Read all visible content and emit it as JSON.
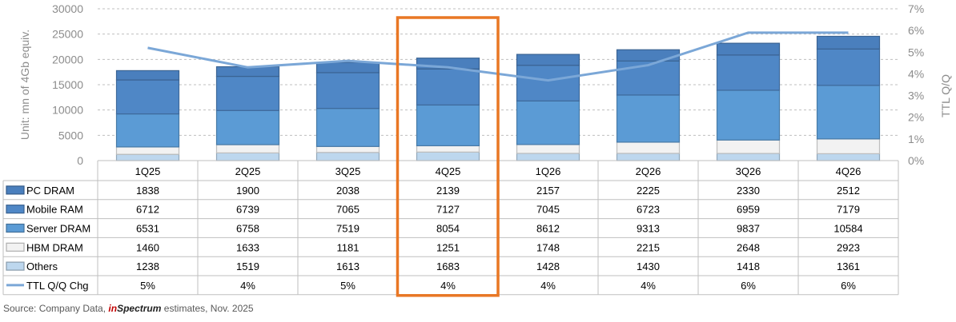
{
  "chart_data": {
    "type": "bar",
    "stacked": true,
    "categories": [
      "1Q25",
      "2Q25",
      "3Q25",
      "4Q25",
      "1Q26",
      "2Q26",
      "3Q26",
      "4Q26"
    ],
    "series": [
      {
        "name": "PC DRAM",
        "values": [
          1838,
          1900,
          2038,
          2139,
          2157,
          2225,
          2330,
          2512
        ],
        "color": "#4a7fbd"
      },
      {
        "name": "Mobile RAM",
        "values": [
          6712,
          6739,
          7065,
          7127,
          7045,
          6723,
          6959,
          7179
        ],
        "color": "#4f87c6"
      },
      {
        "name": "Server DRAM",
        "values": [
          6531,
          6758,
          7519,
          8054,
          8612,
          9313,
          9837,
          10584
        ],
        "color": "#5b9bd5"
      },
      {
        "name": "HBM DRAM",
        "values": [
          1460,
          1633,
          1181,
          1251,
          1748,
          2215,
          2648,
          2923
        ],
        "color": "#f2f2f2"
      },
      {
        "name": "Others",
        "values": [
          1238,
          1519,
          1613,
          1683,
          1428,
          1430,
          1418,
          1361
        ],
        "color": "#bdd7ee"
      }
    ],
    "line": {
      "name": "TTL Q/Q Chg",
      "labels": [
        "5%",
        "4%",
        "5%",
        "4%",
        "4%",
        "4%",
        "6%",
        "6%"
      ],
      "values": [
        0.052,
        0.043,
        0.046,
        0.043,
        0.037,
        0.044,
        0.059,
        0.059
      ],
      "color": "#7ba7d7"
    },
    "y_left": {
      "label": "Unit: mn of 4Gb equiv.",
      "min": 0,
      "max": 30000,
      "ticks": [
        "0",
        "5000",
        "10000",
        "15000",
        "20000",
        "25000",
        "30000"
      ]
    },
    "y_right": {
      "label": "TTL Q/Q",
      "min": 0,
      "max": 0.07,
      "ticks": [
        "0%",
        "1%",
        "2%",
        "3%",
        "4%",
        "5%",
        "6%",
        "7%"
      ]
    },
    "grid": true,
    "highlight_category": "4Q25",
    "highlight_color": "#e97724"
  },
  "source": {
    "prefix": "Source: Company Data, ",
    "brand_a": "in",
    "brand_b": "Spectrum",
    "suffix": " estimates, Nov. 2025"
  }
}
